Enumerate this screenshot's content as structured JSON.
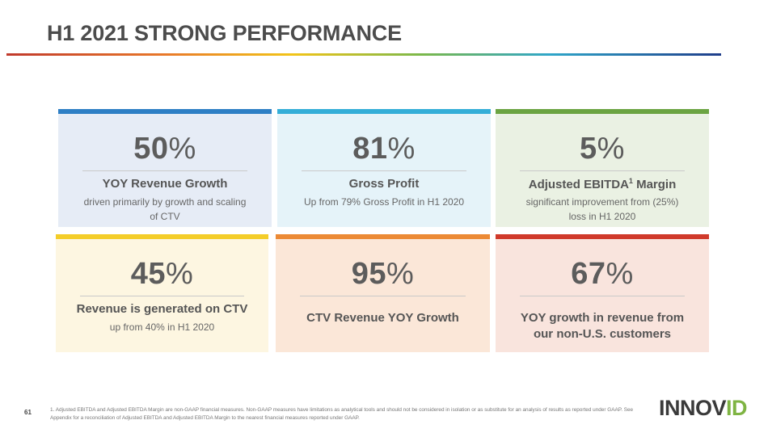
{
  "title": "H1 2021 STRONG PERFORMANCE",
  "colors": {
    "title": "#4c4c4c",
    "logo_accent": "#7fb443"
  },
  "cards": [
    {
      "value": "50",
      "unit": "%",
      "headline": "YOY Revenue Growth",
      "sub": "driven primarily by growth and scaling of CTV",
      "bar_color": "#2e7fc5",
      "bg_color": "#e6ecf6"
    },
    {
      "value": "81",
      "unit": "%",
      "headline": "Gross Profit",
      "sub": "Up from 79% Gross Profit in H1 2020",
      "bar_color": "#34aed8",
      "bg_color": "#e5f3f9"
    },
    {
      "value": "5",
      "unit": "%",
      "headline_pre": "Adjusted EBITDA",
      "headline_sup": "1",
      "headline_post": " Margin",
      "sub": "significant improvement from (25%) loss in H1 2020",
      "bar_color": "#6ba442",
      "bg_color": "#eaf1e3"
    },
    {
      "value": "45",
      "unit": "%",
      "headline": "Revenue is generated on CTV",
      "sub": "up from 40% in H1 2020",
      "bar_color": "#f4cd29",
      "bg_color": "#fdf6e1"
    },
    {
      "value": "95",
      "unit": "%",
      "headline": "CTV Revenue YOY Growth",
      "bar_color": "#ec8a35",
      "bg_color": "#fbe7d8"
    },
    {
      "value": "67",
      "unit": "%",
      "headline": "YOY growth in revenue from our non-U.S. customers",
      "bar_color": "#d03a2b",
      "bg_color": "#f9e4dd"
    }
  ],
  "footer": {
    "page_number": "61",
    "footnote": "1. Adjusted EBITDA and Adjusted EBITDA Margin are non-GAAP financial measures. Non-GAAP measures have limitations as analytical tools and should not be considered in isolation or as substitute for an analysis of results as reported under GAAP. See Appendix for a reconciliation of Adjusted EBITDA and Adjusted EBITDA Margin to the nearest financial measures reported under GAAP.",
    "logo_text_1": "INNOV",
    "logo_text_2": "ID"
  }
}
